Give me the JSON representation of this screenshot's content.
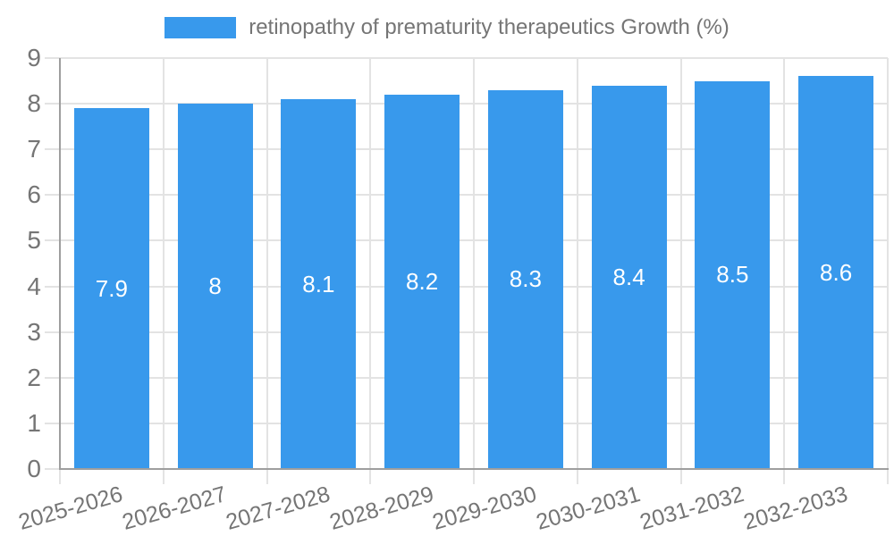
{
  "chart_data": {
    "type": "bar",
    "title": "retinopathy of prematurity therapeutics Growth (%)",
    "legend": "retinopathy of prematurity therapeutics Growth (%)",
    "legend_position": "top-center",
    "categories": [
      "2025-2026",
      "2026-2027",
      "2027-2028",
      "2028-2029",
      "2029-2030",
      "2030-2031",
      "2031-2032",
      "2032-2033"
    ],
    "values": [
      7.9,
      8,
      8.1,
      8.2,
      8.3,
      8.4,
      8.5,
      8.6
    ],
    "bar_labels": [
      "7.9",
      "8",
      "8.1",
      "8.2",
      "8.3",
      "8.4",
      "8.5",
      "8.6"
    ],
    "xlabel": "",
    "ylabel": "",
    "ylim": [
      0,
      9
    ],
    "yticks": [
      0,
      1,
      2,
      3,
      4,
      5,
      6,
      7,
      8,
      9
    ],
    "grid": "horizontal and vertical light-gray lines, bars drawn on top",
    "colors": {
      "bar": "#3899ec",
      "grid": "#e3e3e3",
      "axis": "#9e9e9e",
      "tick_text": "#757575",
      "bar_label_text": "#ffffff"
    }
  }
}
